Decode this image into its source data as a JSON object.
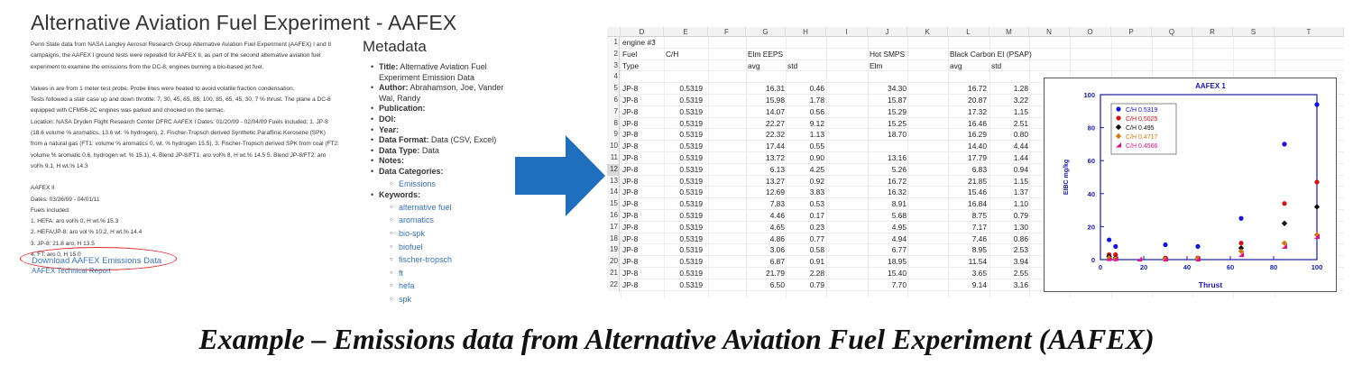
{
  "web": {
    "title": "Alternative Aviation Fuel Experiment - AAFEX",
    "description": [
      "Penn State data from NASA Langley Aerosol Research Group Alternative Aviation Fuel Experiment (AAFEX) I and II",
      "campaigns, the AAFEX I ground tests were repeated for AAFEX II, as part of the second alternative aviation fuel",
      "experiment to examine the emissions from the DC-8, engines burning a bio-based jet fuel.",
      "",
      "Values in are from 1 meter test probe. Probe lines were heated to avoid volatile fraction condensation.",
      "Tests followed a stair case up and down throttle: 7, 30, 45, 65, 85, 100, 85, 65, 45, 30, 7 % thrust. The plane a DC-8",
      "equipped with CFM56-2C engines was parked and chocked on the tarmac.",
      "Location: NASA Dryden Flight Research Center DFRC AAFEX I Dates: 01/20/09 - 02/04/09 Fuels included: 1. JP-8",
      "(18.6 volume % aromatics, 13.6 wt. % hydrogen),  2. Fischer-Tropsch derived Synthetic Paraffinic Kerosene (SPK)",
      "from a natural gas (FT1: volume % aromatics 0, wt. % hydrogen 15.5), 3. Fischer-Tropsch derived SPK from coal (FT2:",
      "volume % aromatic 0.6, hydrogen wt. % 15.1), 4. Blend JP-8/FT1: aro vol% 8, H wt.% 14.5 5. Blend JP-8/FT2: aro",
      "vol% 9.1, H wt.% 14.3",
      "",
      "AAFEX II",
      "Dates: 03/26/09 - 04/01/11",
      "Fuels included:",
      "1. HEFA: aro vol% 0, H wt.% 15.3",
      "2. HEFA/JP-8: aro vol % 10.2, H wt.% 14.4",
      "3. JP-8: 21.8 aro, H 13.5",
      "4. FT: aro 0, H 15.0"
    ],
    "download_link": "Download AAFEX Emissions Data",
    "report_link": "AAFEX Technical Report"
  },
  "metadata": {
    "heading": "Metadata",
    "items": [
      {
        "label": "Title:",
        "value": "Alternative Aviation Fuel Experiment Emission Data"
      },
      {
        "label": "Author:",
        "value": "Abrahamson, Joe, Vander Wal, Randy"
      },
      {
        "label": "Publication:",
        "value": ""
      },
      {
        "label": "DOI:",
        "value": ""
      },
      {
        "label": "Year:",
        "value": ""
      },
      {
        "label": "Data Format:",
        "value": "Data (CSV, Excel)"
      },
      {
        "label": "Data Type:",
        "value": "Data"
      },
      {
        "label": "Notes:",
        "value": ""
      },
      {
        "label": "Data Categories:",
        "value": ""
      },
      {
        "label": "Keywords:",
        "value": ""
      }
    ],
    "categories": [
      "Emissions"
    ],
    "keywords": [
      "alternative fuel",
      "aromatics",
      "bio-spk",
      "biofuel",
      "fischer-tropsch",
      "ft",
      "hefa",
      "spk"
    ]
  },
  "sheet": {
    "columns": [
      "D",
      "E",
      "F",
      "G",
      "H",
      "I",
      "J",
      "K",
      "L",
      "M",
      "N",
      "O",
      "P",
      "Q",
      "R",
      "S",
      "T"
    ],
    "header_rows": [
      {
        "n": "1",
        "cells": {
          "D": "engine #3"
        }
      },
      {
        "n": "2",
        "cells": {
          "D": "Fuel",
          "E": "C/H",
          "G": "Elm EEPS",
          "J": "Hot SMPS",
          "L": "Black Carbon EI (PSAP)"
        }
      },
      {
        "n": "3",
        "cells": {
          "D": "Type",
          "G": "avg",
          "H": "std",
          "J": "Elm",
          "L": "avg",
          "M": "std"
        }
      },
      {
        "n": "4",
        "cells": {}
      }
    ],
    "data_rows": [
      {
        "n": "5",
        "fuel": "JP-8",
        "ch": "0.5319",
        "g": "16.31",
        "h": "0.46",
        "j": "34.30",
        "l": "16.72",
        "m": "1.28"
      },
      {
        "n": "6",
        "fuel": "JP-8",
        "ch": "0.5319",
        "g": "15.98",
        "h": "1.78",
        "j": "15.87",
        "l": "20.87",
        "m": "3.22"
      },
      {
        "n": "7",
        "fuel": "JP-8",
        "ch": "0.5319",
        "g": "14.07",
        "h": "0.56",
        "j": "15.29",
        "l": "17.32",
        "m": "1.15"
      },
      {
        "n": "8",
        "fuel": "JP-8",
        "ch": "0.5319",
        "g": "22.27",
        "h": "9.12",
        "j": "15.25",
        "l": "16.46",
        "m": "2.51"
      },
      {
        "n": "9",
        "fuel": "JP-8",
        "ch": "0.5319",
        "g": "22.32",
        "h": "1.13",
        "j": "18.70",
        "l": "16.29",
        "m": "0.80"
      },
      {
        "n": "10",
        "fuel": "JP-8",
        "ch": "0.5319",
        "g": "17.44",
        "h": "0.55",
        "j": "",
        "l": "14.40",
        "m": "4.44"
      },
      {
        "n": "11",
        "fuel": "JP-8",
        "ch": "0.5319",
        "g": "13.72",
        "h": "0.90",
        "j": "13.16",
        "l": "17.79",
        "m": "1.44"
      },
      {
        "n": "12",
        "fuel": "JP-8",
        "ch": "0.5319",
        "g": "6.13",
        "h": "4.25",
        "j": "5.26",
        "l": "6.83",
        "m": "0.94"
      },
      {
        "n": "13",
        "fuel": "JP-8",
        "ch": "0.5319",
        "g": "13.27",
        "h": "0.92",
        "j": "16.72",
        "l": "21.85",
        "m": "1.15"
      },
      {
        "n": "14",
        "fuel": "JP-8",
        "ch": "0.5319",
        "g": "12.69",
        "h": "3.83",
        "j": "16.32",
        "l": "15.46",
        "m": "1.37"
      },
      {
        "n": "15",
        "fuel": "JP-8",
        "ch": "0.5319",
        "g": "7.83",
        "h": "0.53",
        "j": "8.91",
        "l": "16.84",
        "m": "1.10"
      },
      {
        "n": "16",
        "fuel": "JP-8",
        "ch": "0.5319",
        "g": "4.46",
        "h": "0.17",
        "j": "5.68",
        "l": "8.75",
        "m": "0.79"
      },
      {
        "n": "17",
        "fuel": "JP-8",
        "ch": "0.5319",
        "g": "4.65",
        "h": "0.23",
        "j": "4.95",
        "l": "7.17",
        "m": "1.30"
      },
      {
        "n": "18",
        "fuel": "JP-8",
        "ch": "0.5319",
        "g": "4.86",
        "h": "0.77",
        "j": "4.94",
        "l": "7.46",
        "m": "0.86"
      },
      {
        "n": "19",
        "fuel": "JP-8",
        "ch": "0.5319",
        "g": "3.06",
        "h": "0.58",
        "j": "6.77",
        "l": "8.95",
        "m": "2.53"
      },
      {
        "n": "20",
        "fuel": "JP-8",
        "ch": "0.5319",
        "g": "6.87",
        "h": "0.91",
        "j": "18.95",
        "l": "11.54",
        "m": "3.94"
      },
      {
        "n": "21",
        "fuel": "JP-8",
        "ch": "0.5319",
        "g": "21.79",
        "h": "2.28",
        "j": "15.40",
        "l": "3.65",
        "m": "2.55"
      },
      {
        "n": "22",
        "fuel": "JP-8",
        "ch": "0.5319",
        "g": "6.50",
        "h": "0.79",
        "j": "7.70",
        "l": "9.14",
        "m": "3.16"
      }
    ],
    "selected_row": "12"
  },
  "chart_data": {
    "type": "scatter",
    "title": "AAFEX 1",
    "xlabel": "Thrust",
    "ylabel": "EIBC mg/kg",
    "xlim": [
      0,
      100
    ],
    "ylim": [
      0,
      100
    ],
    "xticks": [
      0,
      20,
      40,
      60,
      80,
      100
    ],
    "yticks": [
      0,
      20,
      40,
      60,
      80,
      100
    ],
    "legend": "top-left",
    "series": [
      {
        "name": "C/H 0.5319",
        "color": "#1414d2",
        "marker": "circle",
        "points": [
          [
            4,
            12
          ],
          [
            7,
            8
          ],
          [
            30,
            9
          ],
          [
            45,
            8
          ],
          [
            65,
            25
          ],
          [
            85,
            70
          ],
          [
            100,
            94
          ]
        ]
      },
      {
        "name": "C/H 0.5025",
        "color": "#d41414",
        "marker": "circle",
        "points": [
          [
            4,
            3
          ],
          [
            7,
            3
          ],
          [
            30,
            1
          ],
          [
            45,
            1
          ],
          [
            65,
            10
          ],
          [
            85,
            34
          ],
          [
            100,
            47
          ]
        ]
      },
      {
        "name": "C/H 0.495",
        "color": "#111111",
        "marker": "diamond",
        "points": [
          [
            4,
            2
          ],
          [
            7,
            1
          ],
          [
            30,
            0.5
          ],
          [
            45,
            0.5
          ],
          [
            65,
            7
          ],
          [
            85,
            22
          ],
          [
            100,
            32
          ]
        ]
      },
      {
        "name": "C/H 0.4717",
        "color": "#d07a10",
        "marker": "diamond",
        "points": [
          [
            4,
            1
          ],
          [
            7,
            0.5
          ],
          [
            30,
            0.3
          ],
          [
            45,
            0.5
          ],
          [
            65,
            5
          ],
          [
            85,
            10
          ],
          [
            100,
            15
          ]
        ]
      },
      {
        "name": "C/H 0.4566",
        "color": "#e0148a",
        "marker": "triangle",
        "points": [
          [
            4,
            0.5
          ],
          [
            7,
            0.5
          ],
          [
            18,
            0.3
          ],
          [
            30,
            0.3
          ],
          [
            45,
            0.3
          ],
          [
            65,
            3
          ],
          [
            85,
            8
          ],
          [
            100,
            14
          ]
        ]
      }
    ]
  },
  "caption": "Example – Emissions data from Alternative Aviation Fuel Experiment (AAFEX)",
  "colors": {
    "link": "#3b73b9",
    "arrow": "#1f6fbd",
    "annotation": "#e0282a"
  }
}
